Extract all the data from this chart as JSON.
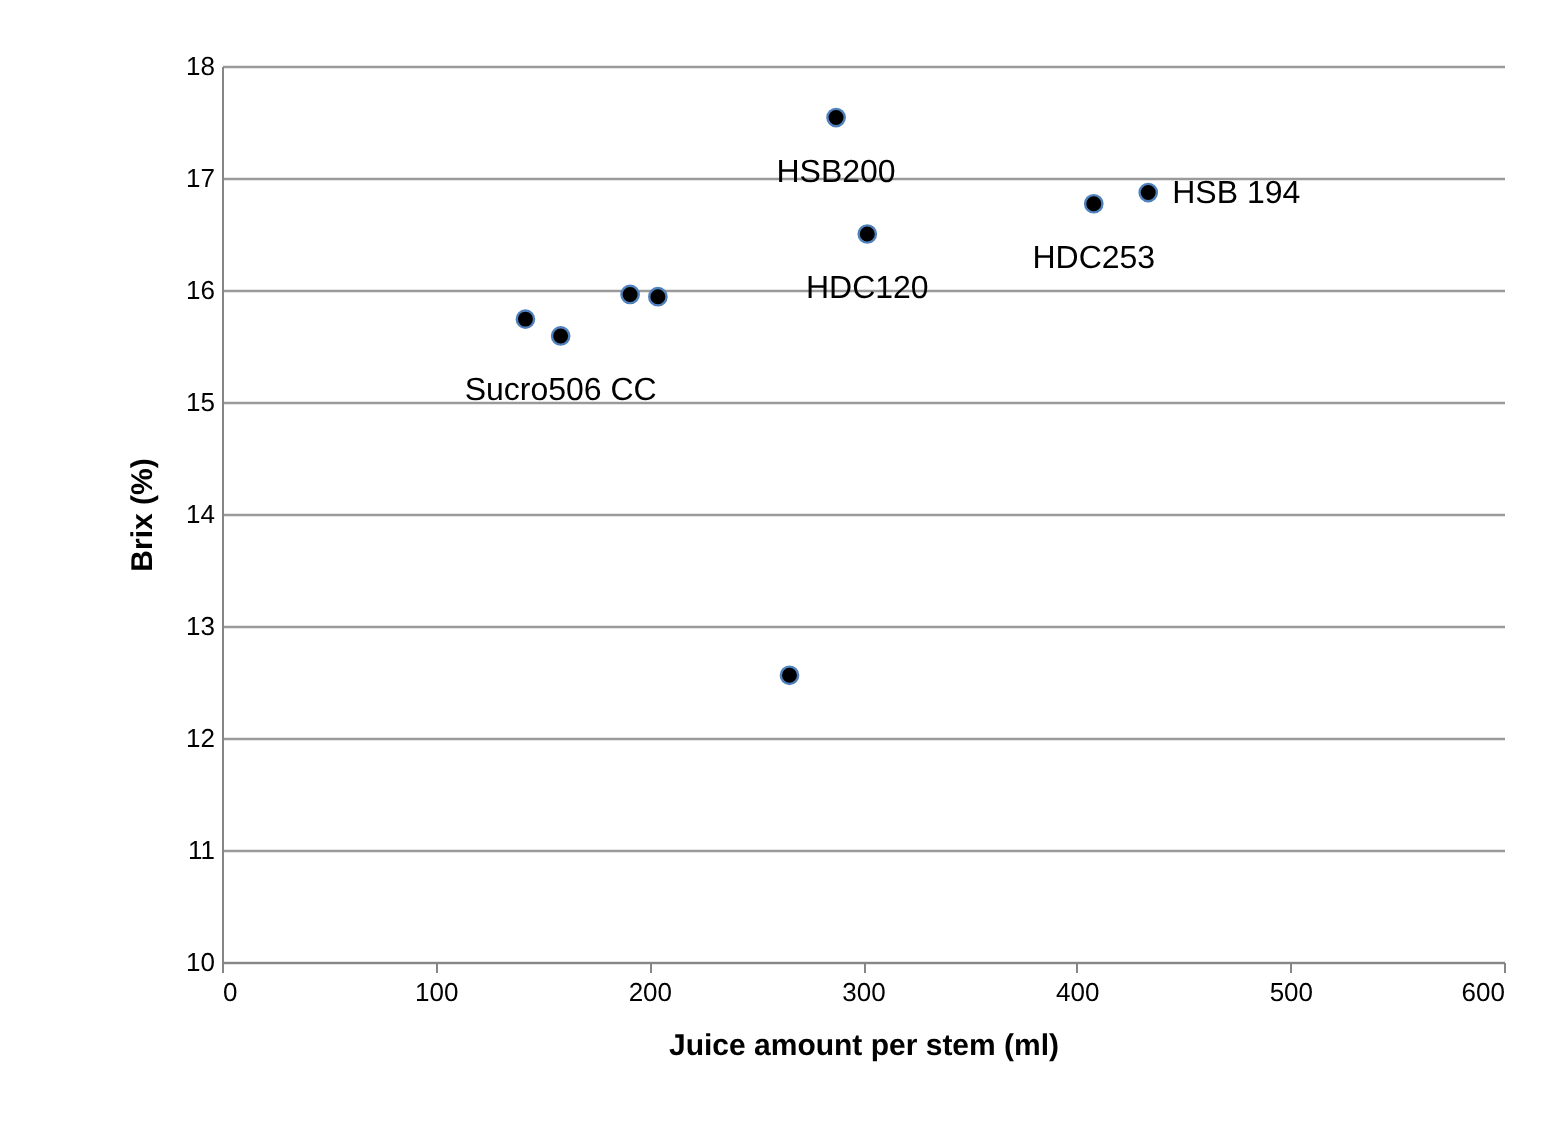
{
  "chart_data": {
    "type": "scatter",
    "xlabel": "Juice amount per stem (ml)",
    "ylabel": "Brix (%)",
    "x": [
      142,
      158.5,
      191,
      204,
      265.6,
      287.4,
      302,
      408,
      433.5
    ],
    "series": [
      {
        "color": "#000000",
        "values": [
          15.74,
          15.59,
          15.96,
          15.94,
          12.56,
          17.54,
          16.5,
          16.77,
          16.87
        ]
      }
    ],
    "xlim": [
      0,
      600
    ],
    "xticks": [
      0,
      100,
      200,
      300,
      400,
      500,
      600
    ],
    "ylim": [
      10,
      18
    ],
    "yticks": [
      10,
      11,
      12,
      13,
      14,
      15,
      16,
      17,
      18
    ],
    "grid": "y",
    "marker": "circle",
    "annotations": [
      {
        "text": "Sucro506 CC",
        "x": 158.5,
        "y": 15.59
      },
      {
        "text": "HSB200",
        "x": 287.4,
        "y": 17.54
      },
      {
        "text": "HDC120",
        "x": 302,
        "y": 16.5
      },
      {
        "text": "HDC253",
        "x": 408,
        "y": 16.77
      },
      {
        "text": "HSB 194",
        "x": 433.5,
        "y": 16.87
      }
    ]
  }
}
